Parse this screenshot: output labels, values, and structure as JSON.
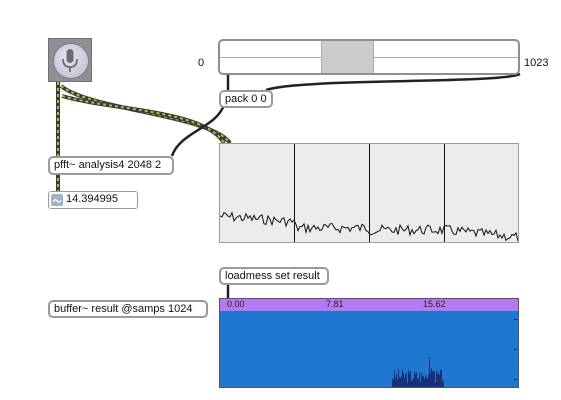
{
  "ezadc": {
    "icon": "microphone-icon",
    "bg": "#8f8f96"
  },
  "range": {
    "min_label": "0",
    "max_label": "1023",
    "selection_start": 0.34,
    "selection_end": 0.51
  },
  "pack": {
    "label": "pack 0 0"
  },
  "pfft": {
    "label": "pfft~ analysis4 2048 2"
  },
  "number": {
    "value": "14.394995"
  },
  "loadmess": {
    "label": "loadmess set result"
  },
  "buffer": {
    "label": "buffer~ result @samps 1024"
  },
  "waveform": {
    "ruler": [
      "0.00",
      "7.81",
      "15.62"
    ],
    "ruler_color": "#b779f2",
    "bg": "#1e78d2"
  },
  "spectroscope": {
    "bg": "#ececec"
  },
  "colors": {
    "patchcord_signal": "#a4c43f",
    "patchcord": "#222222"
  }
}
